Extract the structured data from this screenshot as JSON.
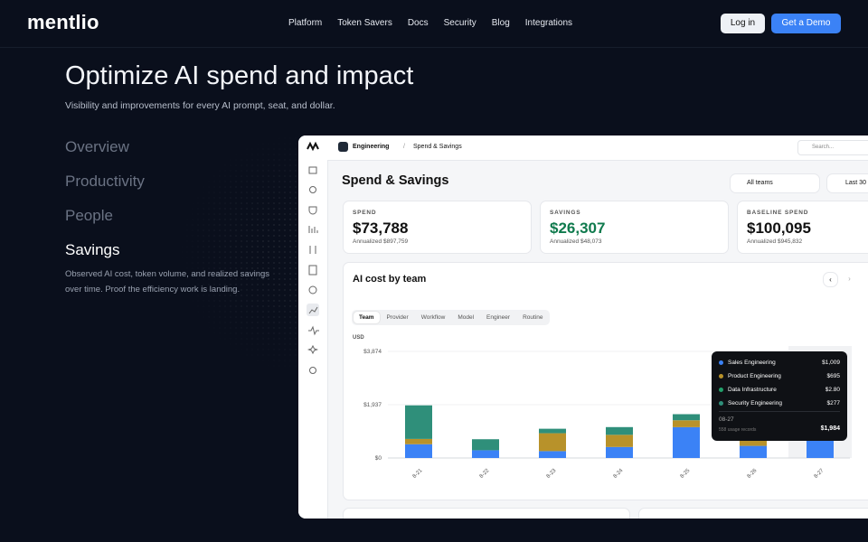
{
  "nav": {
    "logo": "mentlio",
    "links": [
      "Platform",
      "Token Savers",
      "Docs",
      "Security",
      "Blog",
      "Integrations"
    ],
    "login": "Log in",
    "demo": "Get a Demo"
  },
  "hero": {
    "title": "Optimize AI spend and impact",
    "subtitle": "Visibility and improvements for every AI prompt, seat, and dollar."
  },
  "tabs": {
    "items": [
      "Overview",
      "Productivity",
      "People",
      "Savings"
    ],
    "description": "Observed AI cost, token volume, and realized savings over time. Proof the efficiency work is landing."
  },
  "app": {
    "workspace": "Engineering",
    "breadcrumb": "Spend & Savings",
    "search": "Search...",
    "page_title": "Spend & Savings",
    "team_filter": "All teams",
    "date_filter": "Last 30",
    "kpis": [
      {
        "label": "SPEND",
        "value": "$73,788",
        "sub": "Annualized $897,759"
      },
      {
        "label": "SAVINGS",
        "value": "$26,307",
        "sub": "Annualized $48,073"
      },
      {
        "label": "BASELINE SPEND",
        "value": "$100,095",
        "sub": "Annualized $945,832"
      }
    ]
  },
  "chart_data": {
    "type": "bar",
    "stacked": true,
    "title": "AI cost by team",
    "tabs": [
      "Team",
      "Provider",
      "Workflow",
      "Model",
      "Engineer",
      "Routine"
    ],
    "ylabel": "USD",
    "categories": [
      "8-21",
      "8-22",
      "8-23",
      "8-24",
      "8-25",
      "8-26",
      "8-27"
    ],
    "series": [
      {
        "name": "Sales Engineering",
        "color": "#3b82f6",
        "values": [
          500,
          280,
          250,
          400,
          1120,
          440,
          1009
        ]
      },
      {
        "name": "Product Engineering",
        "color": "#b8922a",
        "values": [
          190,
          0,
          650,
          440,
          250,
          370,
          695
        ]
      },
      {
        "name": "Data Infrastructure",
        "color": "#22a06b",
        "values": [
          3,
          2,
          3,
          3,
          2,
          3,
          2.8
        ]
      },
      {
        "name": "Security Engineering",
        "color": "#2f8f7a",
        "values": [
          1220,
          400,
          160,
          280,
          220,
          180,
          277
        ]
      }
    ],
    "ylim": [
      0,
      3874
    ],
    "yticks": [
      {
        "value": 0,
        "label": "$0"
      },
      {
        "value": 1937,
        "label": "$1,937"
      },
      {
        "value": 3874,
        "label": "$3,874"
      }
    ],
    "grid": true,
    "tooltip": {
      "value_labels": [
        "$1,009",
        "$695",
        "$2.80",
        "$277"
      ],
      "x": "08-27",
      "note": "558 usage records",
      "total": "$1,984"
    }
  }
}
